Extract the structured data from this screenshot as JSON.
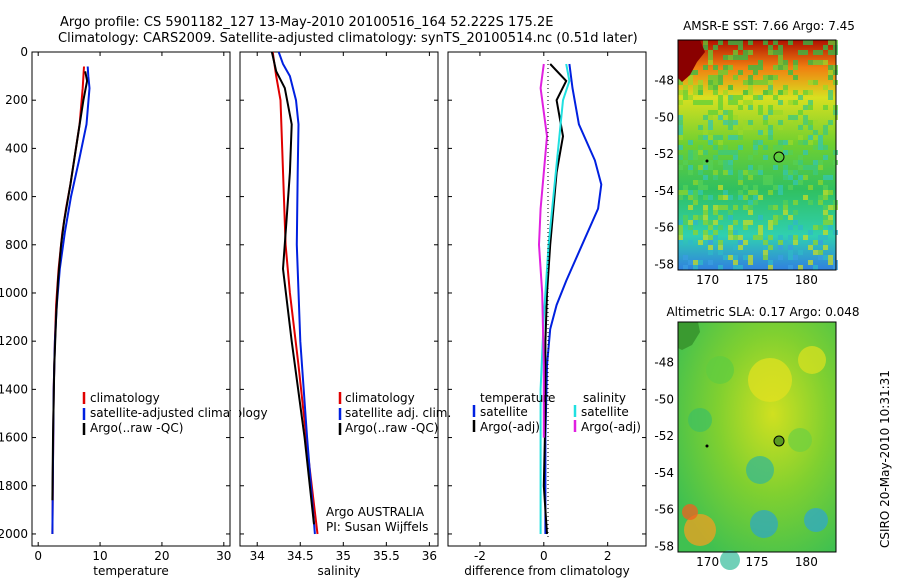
{
  "header": {
    "line1": "Argo profile: CS 5901182_127 13-May-2010 20100516_164 52.222S 175.2E",
    "line2": "Climatology: CARS2009. Satellite-adjusted climatology: synTS_20100514.nc (0.51d later)"
  },
  "side_label": "CSIRO 20-May-2010 10:31:31",
  "colors": {
    "climatology": "#e00000",
    "satellite": "#0020e0",
    "argo": "#000000",
    "argo_salinity": "#e020e0",
    "satellite_salinity": "#20e0e0"
  },
  "chart_data": [
    {
      "type": "line",
      "id": "temperature",
      "xlabel": "temperature",
      "ylabel": "",
      "xlim": [
        -1,
        31
      ],
      "ylim": [
        2050,
        0
      ],
      "xticks": [
        "0",
        "10",
        "20",
        "30"
      ],
      "yticks": [
        "0",
        "200",
        "400",
        "600",
        "800",
        "1000",
        "1200",
        "1400",
        "1600",
        "1800",
        "2000"
      ],
      "legend": [
        "climatology",
        "satellite-adjusted climatology",
        "Argo(..raw -QC)"
      ],
      "series": [
        {
          "name": "climatology",
          "color": "#e00000",
          "x": [
            7.4,
            7.2,
            6.7,
            5.8,
            5.2,
            4.5,
            3.9,
            3.3,
            2.9,
            2.7,
            2.5,
            2.4,
            2.3
          ],
          "y": [
            60,
            150,
            300,
            450,
            550,
            650,
            750,
            900,
            1050,
            1200,
            1400,
            1700,
            2000
          ]
        },
        {
          "name": "satellite-adjusted climatology",
          "color": "#0020e0",
          "x": [
            8.0,
            8.1,
            8.3,
            7.8,
            6.6,
            5.3,
            4.3,
            3.5,
            3.0,
            2.7,
            2.5,
            2.4,
            2.3
          ],
          "y": [
            60,
            100,
            150,
            300,
            450,
            600,
            750,
            900,
            1050,
            1200,
            1400,
            1700,
            2000
          ]
        },
        {
          "name": "Argo(..raw -QC)",
          "color": "#000000",
          "x": [
            7.6,
            7.9,
            7.3,
            6.4,
            5.8,
            5.2,
            4.2,
            3.7,
            3.2,
            2.9,
            2.6,
            2.4,
            2.3
          ],
          "y": [
            80,
            120,
            200,
            350,
            450,
            550,
            700,
            800,
            950,
            1100,
            1300,
            1600,
            1860
          ]
        }
      ]
    },
    {
      "type": "line",
      "id": "salinity",
      "xlabel": "salinity",
      "xlim": [
        33.8,
        36.1
      ],
      "ylim": [
        2050,
        0
      ],
      "xticks": [
        "34",
        "34.5",
        "35",
        "35.5",
        "36"
      ],
      "legend": [
        "climatology",
        "satellite adj. clim.",
        "Argo(..raw -QC)"
      ],
      "annotation": [
        "Argo AUSTRALIA",
        "PI: Susan Wijffels"
      ],
      "series": [
        {
          "name": "climatology",
          "color": "#e00000",
          "x": [
            34.18,
            34.22,
            34.27,
            34.29,
            34.31,
            34.33,
            34.38,
            34.48,
            34.6,
            34.7
          ],
          "y": [
            0,
            100,
            200,
            400,
            600,
            800,
            1000,
            1300,
            1700,
            2000
          ]
        },
        {
          "name": "satellite adj. clim.",
          "color": "#0020e0",
          "x": [
            34.25,
            34.3,
            34.38,
            34.45,
            34.48,
            34.47,
            34.46,
            34.5,
            34.58,
            34.67
          ],
          "y": [
            0,
            50,
            100,
            200,
            300,
            500,
            800,
            1200,
            1600,
            2000
          ]
        },
        {
          "name": "Argo(..raw -QC)",
          "color": "#000000",
          "x": [
            34.17,
            34.22,
            34.32,
            34.4,
            34.38,
            34.34,
            34.3,
            34.4,
            34.55,
            34.66
          ],
          "y": [
            0,
            80,
            150,
            300,
            500,
            700,
            900,
            1200,
            1600,
            1960
          ]
        }
      ]
    },
    {
      "type": "line",
      "id": "difference",
      "xlabel": "difference from climatology",
      "xlim": [
        -3,
        3.2
      ],
      "ylim": [
        2050,
        0
      ],
      "xticks": [
        "-2",
        "0",
        "2"
      ],
      "legend_titles": [
        "temperature",
        "salinity"
      ],
      "legend": [
        "satellite",
        "Argo(-adj)",
        "satellite",
        "Argo(-adj)"
      ],
      "series": [
        {
          "name": "satellite",
          "color": "#0020e0",
          "x": [
            0.8,
            0.9,
            1.1,
            1.6,
            1.8,
            1.7,
            1.2,
            0.7,
            0.4,
            0.2,
            0.1,
            0.05,
            0.05
          ],
          "y": [
            50,
            150,
            300,
            450,
            550,
            650,
            800,
            950,
            1050,
            1150,
            1300,
            1600,
            2000
          ]
        },
        {
          "name": "Argo(-adj)",
          "color": "#000000",
          "x": [
            0.2,
            0.7,
            0.4,
            0.6,
            0.4,
            0.3,
            0.2,
            0.1,
            0.05,
            0.05,
            0.0,
            0.1
          ],
          "y": [
            50,
            120,
            200,
            350,
            500,
            650,
            800,
            1000,
            1200,
            1500,
            1800,
            2000
          ]
        },
        {
          "name": "satellite",
          "color": "#20e0e0",
          "x": [
            0.7,
            0.8,
            0.6,
            0.45,
            0.3,
            0.15,
            0.0,
            -0.1,
            -0.1,
            -0.1
          ],
          "y": [
            50,
            120,
            200,
            400,
            600,
            800,
            1100,
            1400,
            1700,
            2000
          ]
        },
        {
          "name": "Argo(-adj)",
          "color": "#e020e0",
          "x": [
            0.0,
            -0.1,
            0.1,
            0.0,
            -0.1,
            -0.15,
            -0.05,
            0.0,
            0.0
          ],
          "y": [
            50,
            150,
            350,
            500,
            650,
            800,
            1000,
            1300,
            1600
          ]
        }
      ]
    },
    {
      "type": "heatmap",
      "id": "sst",
      "title": "AMSR-E SST: 7.66 Argo: 7.45",
      "xticks": [
        "170",
        "175",
        "180"
      ],
      "yticks": [
        "-48",
        "-50",
        "-52",
        "-54",
        "-56",
        "-58"
      ],
      "xlim": [
        167,
        183
      ],
      "ylim": [
        -58.3,
        -45.8
      ],
      "argo_position": {
        "lon": 175.2,
        "lat": -52.222
      }
    },
    {
      "type": "heatmap",
      "id": "sla",
      "title": "Altimetric SLA: 0.17 Argo: 0.048",
      "xticks": [
        "170",
        "175",
        "180"
      ],
      "yticks": [
        "-48",
        "-50",
        "-52",
        "-54",
        "-56",
        "-58"
      ],
      "xlim": [
        167,
        183
      ],
      "ylim": [
        -58.3,
        -45.8
      ],
      "argo_position": {
        "lon": 175.2,
        "lat": -52.222
      }
    }
  ]
}
